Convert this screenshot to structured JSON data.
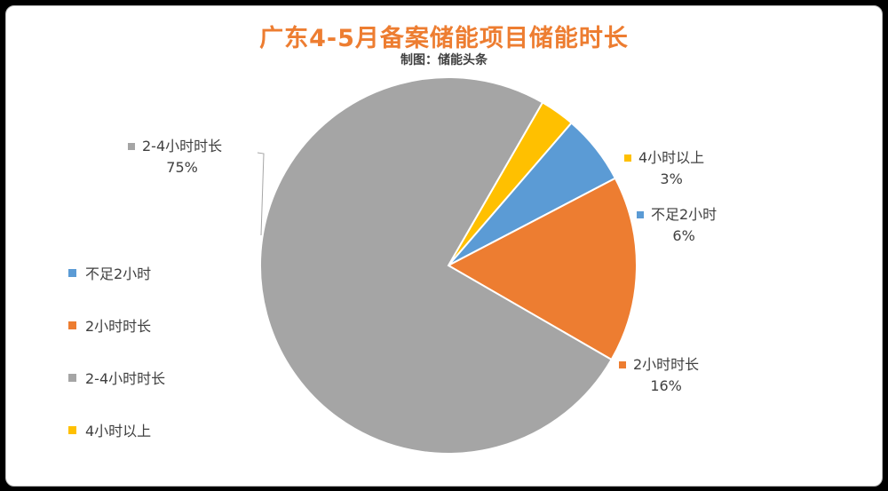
{
  "chart_data": {
    "type": "pie",
    "title": "广东4-5月备案储能项目储能时长",
    "subtitle": "制图：储能头条",
    "slices": [
      {
        "label": "4小时以上",
        "value": 3,
        "value_label": "3%",
        "color": "#FFC000"
      },
      {
        "label": "不足2小时",
        "value": 6,
        "value_label": "6%",
        "color": "#5B9BD5"
      },
      {
        "label": "2小时时长",
        "value": 16,
        "value_label": "16%",
        "color": "#ED7D31"
      },
      {
        "label": "2-4小时时长",
        "value": 75,
        "value_label": "75%",
        "color": "#A5A5A5"
      }
    ],
    "legend": [
      {
        "label": "不足2小时",
        "color": "#5B9BD5"
      },
      {
        "label": "2小时时长",
        "color": "#ED7D31"
      },
      {
        "label": "2-4小时时长",
        "color": "#A5A5A5"
      },
      {
        "label": "4小时以上",
        "color": "#FFC000"
      }
    ],
    "legend_position": "left"
  }
}
